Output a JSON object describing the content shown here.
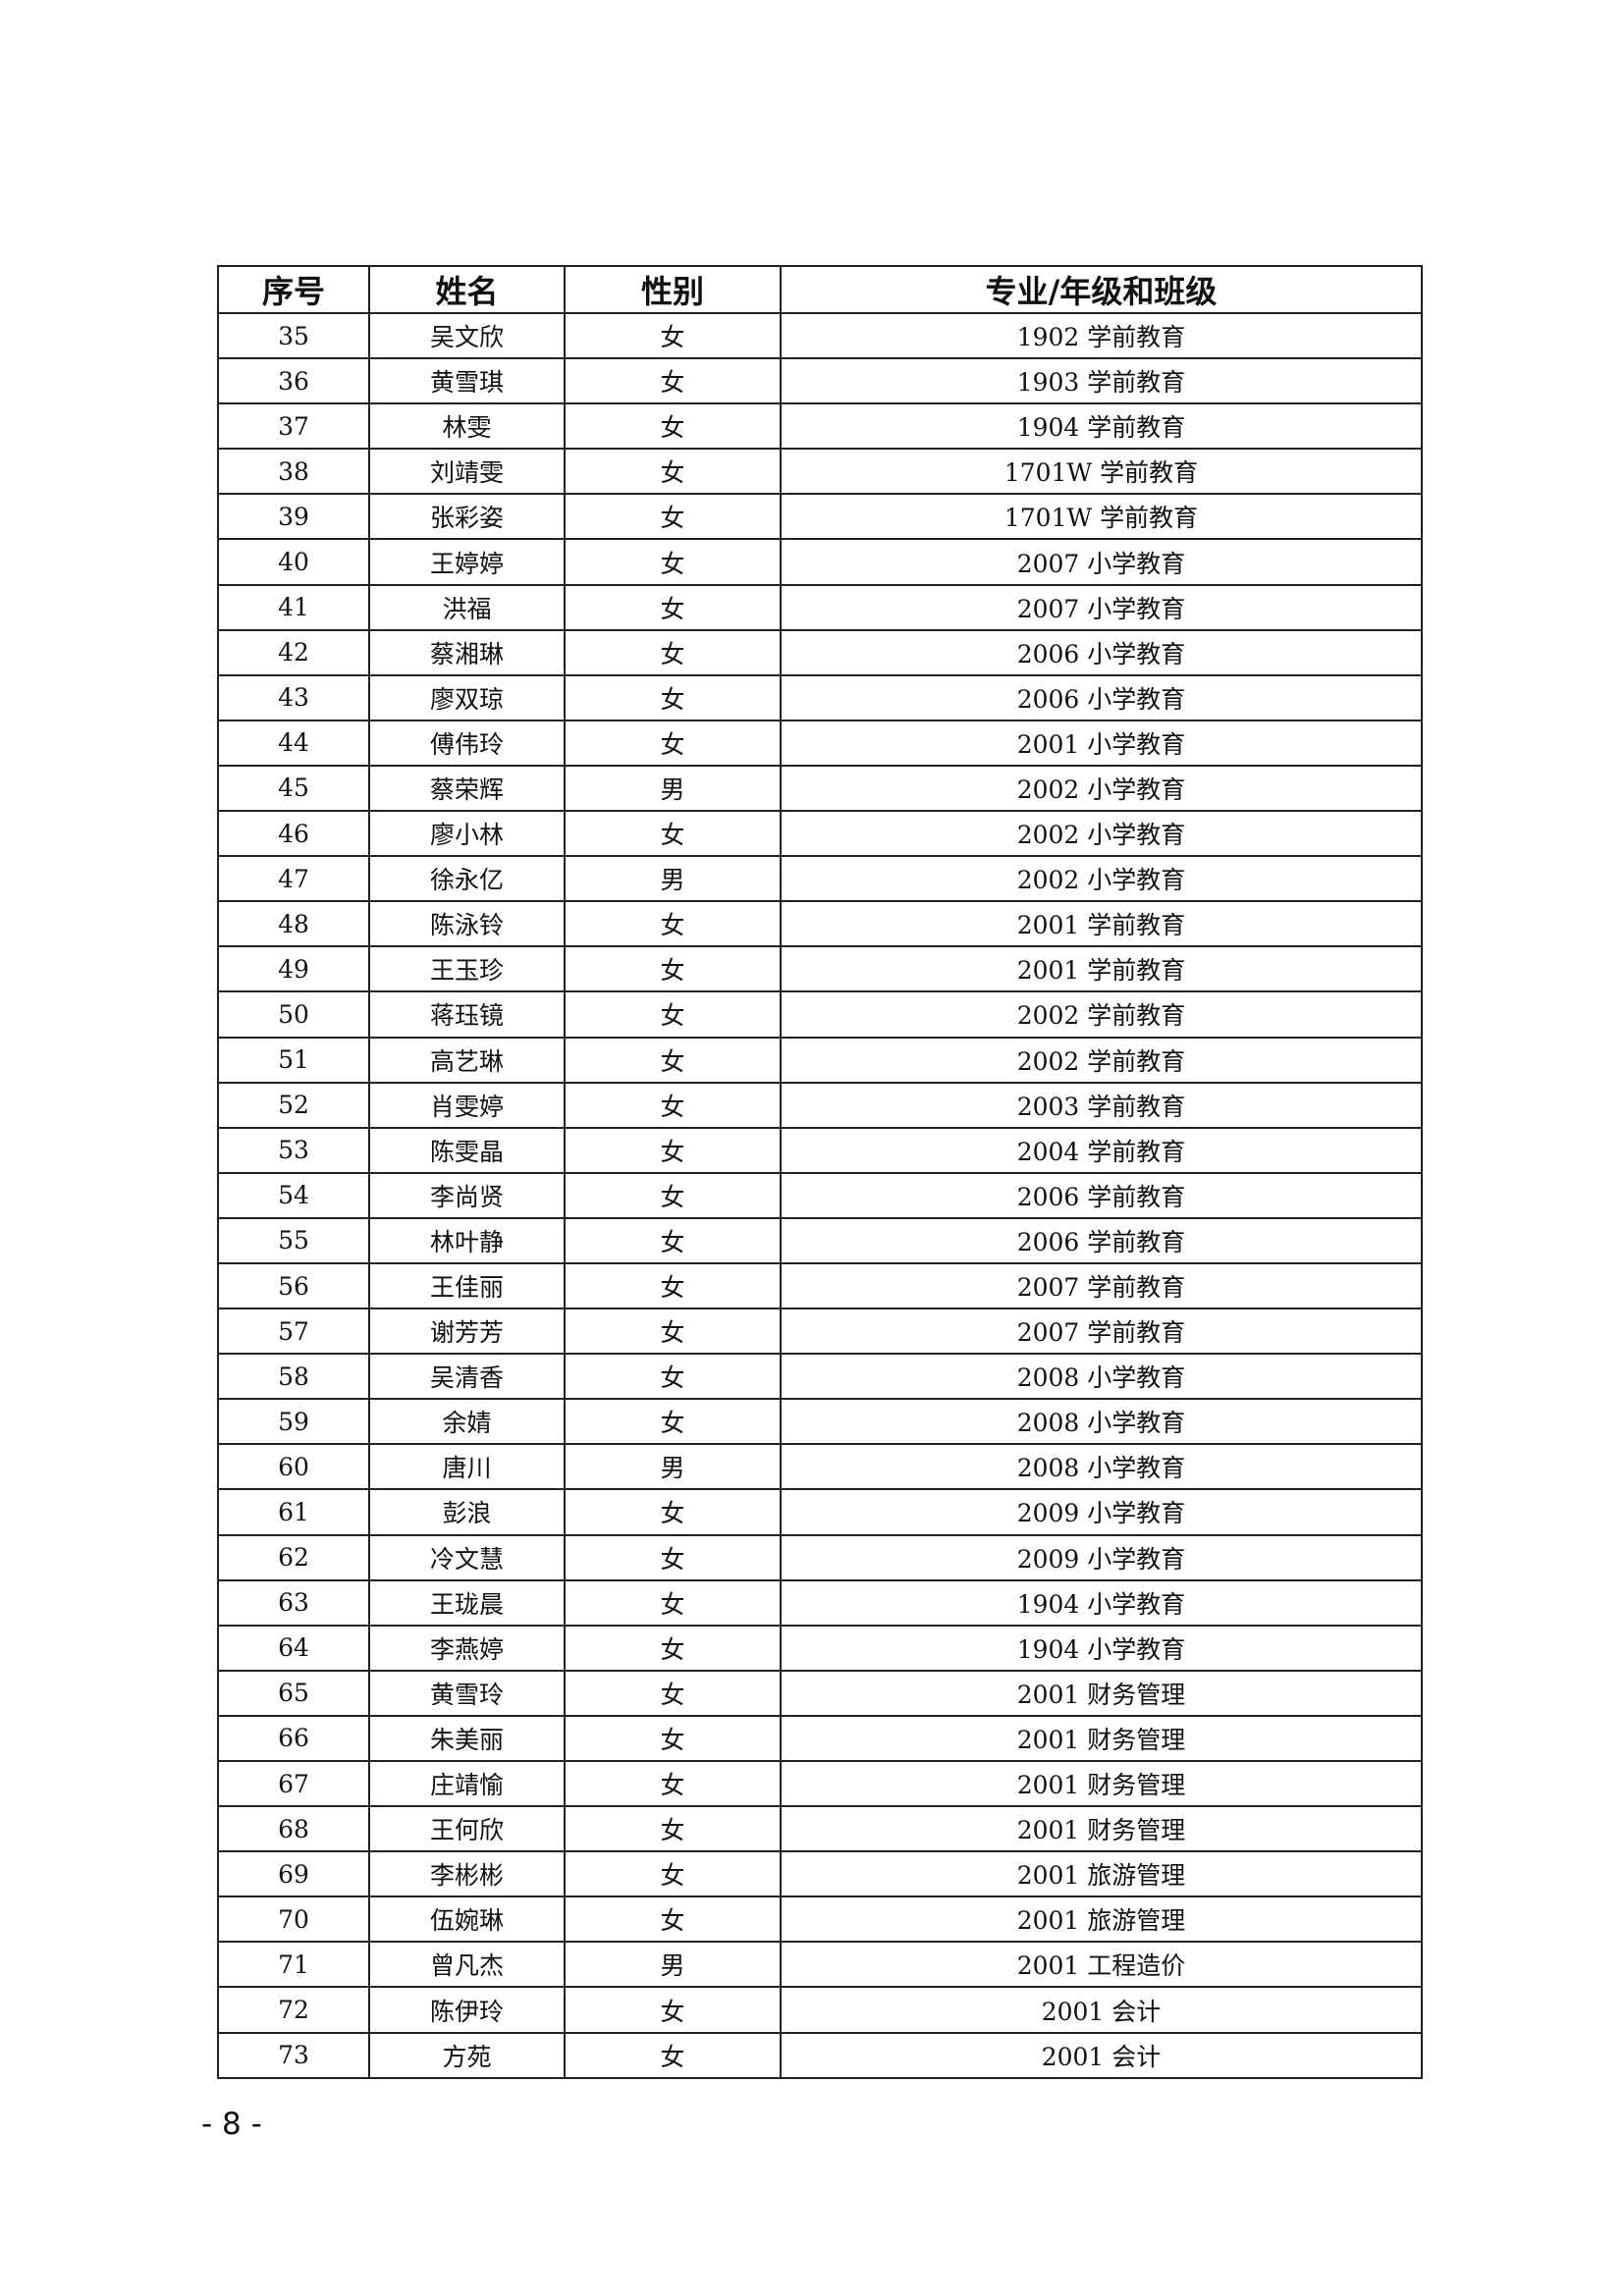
{
  "table": {
    "headers": [
      "序号",
      "姓名",
      "性别",
      "专业/年级和班级"
    ],
    "rows": [
      [
        "35",
        "吴文欣",
        "女",
        "1902 学前教育"
      ],
      [
        "36",
        "黄雪琪",
        "女",
        "1903 学前教育"
      ],
      [
        "37",
        "林雯",
        "女",
        "1904 学前教育"
      ],
      [
        "38",
        "刘靖雯",
        "女",
        "1701W 学前教育"
      ],
      [
        "39",
        "张彩姿",
        "女",
        "1701W 学前教育"
      ],
      [
        "40",
        "王婷婷",
        "女",
        "2007 小学教育"
      ],
      [
        "41",
        "洪福",
        "女",
        "2007 小学教育"
      ],
      [
        "42",
        "蔡湘琳",
        "女",
        "2006 小学教育"
      ],
      [
        "43",
        "廖双琼",
        "女",
        "2006 小学教育"
      ],
      [
        "44",
        "傅伟玲",
        "女",
        "2001 小学教育"
      ],
      [
        "45",
        "蔡荣辉",
        "男",
        "2002 小学教育"
      ],
      [
        "46",
        "廖小林",
        "女",
        "2002 小学教育"
      ],
      [
        "47",
        "徐永亿",
        "男",
        "2002 小学教育"
      ],
      [
        "48",
        "陈泳铃",
        "女",
        "2001 学前教育"
      ],
      [
        "49",
        "王玉珍",
        "女",
        "2001 学前教育"
      ],
      [
        "50",
        "蒋珏镜",
        "女",
        "2002 学前教育"
      ],
      [
        "51",
        "高艺琳",
        "女",
        "2002 学前教育"
      ],
      [
        "52",
        "肖雯婷",
        "女",
        "2003 学前教育"
      ],
      [
        "53",
        "陈雯晶",
        "女",
        "2004 学前教育"
      ],
      [
        "54",
        "李尚贤",
        "女",
        "2006 学前教育"
      ],
      [
        "55",
        "林叶静",
        "女",
        "2006 学前教育"
      ],
      [
        "56",
        "王佳丽",
        "女",
        "2007 学前教育"
      ],
      [
        "57",
        "谢芳芳",
        "女",
        "2007 学前教育"
      ],
      [
        "58",
        "吴清香",
        "女",
        "2008 小学教育"
      ],
      [
        "59",
        "余婧",
        "女",
        "2008 小学教育"
      ],
      [
        "60",
        "唐川",
        "男",
        "2008 小学教育"
      ],
      [
        "61",
        "彭浪",
        "女",
        "2009 小学教育"
      ],
      [
        "62",
        "冷文慧",
        "女",
        "2009 小学教育"
      ],
      [
        "63",
        "王珑晨",
        "女",
        "1904 小学教育"
      ],
      [
        "64",
        "李燕婷",
        "女",
        "1904 小学教育"
      ],
      [
        "65",
        "黄雪玲",
        "女",
        "2001 财务管理"
      ],
      [
        "66",
        "朱美丽",
        "女",
        "2001 财务管理"
      ],
      [
        "67",
        "庄靖愉",
        "女",
        "2001 财务管理"
      ],
      [
        "68",
        "王何欣",
        "女",
        "2001 财务管理"
      ],
      [
        "69",
        "李彬彬",
        "女",
        "2001 旅游管理"
      ],
      [
        "70",
        "伍婉琳",
        "女",
        "2001 旅游管理"
      ],
      [
        "71",
        "曾凡杰",
        "男",
        "2001 工程造价"
      ],
      [
        "72",
        "陈伊玲",
        "女",
        "2001 会计"
      ],
      [
        "73",
        "方苑",
        "女",
        "2001 会计"
      ]
    ]
  },
  "footer": {
    "page_number": "- 8 -"
  }
}
